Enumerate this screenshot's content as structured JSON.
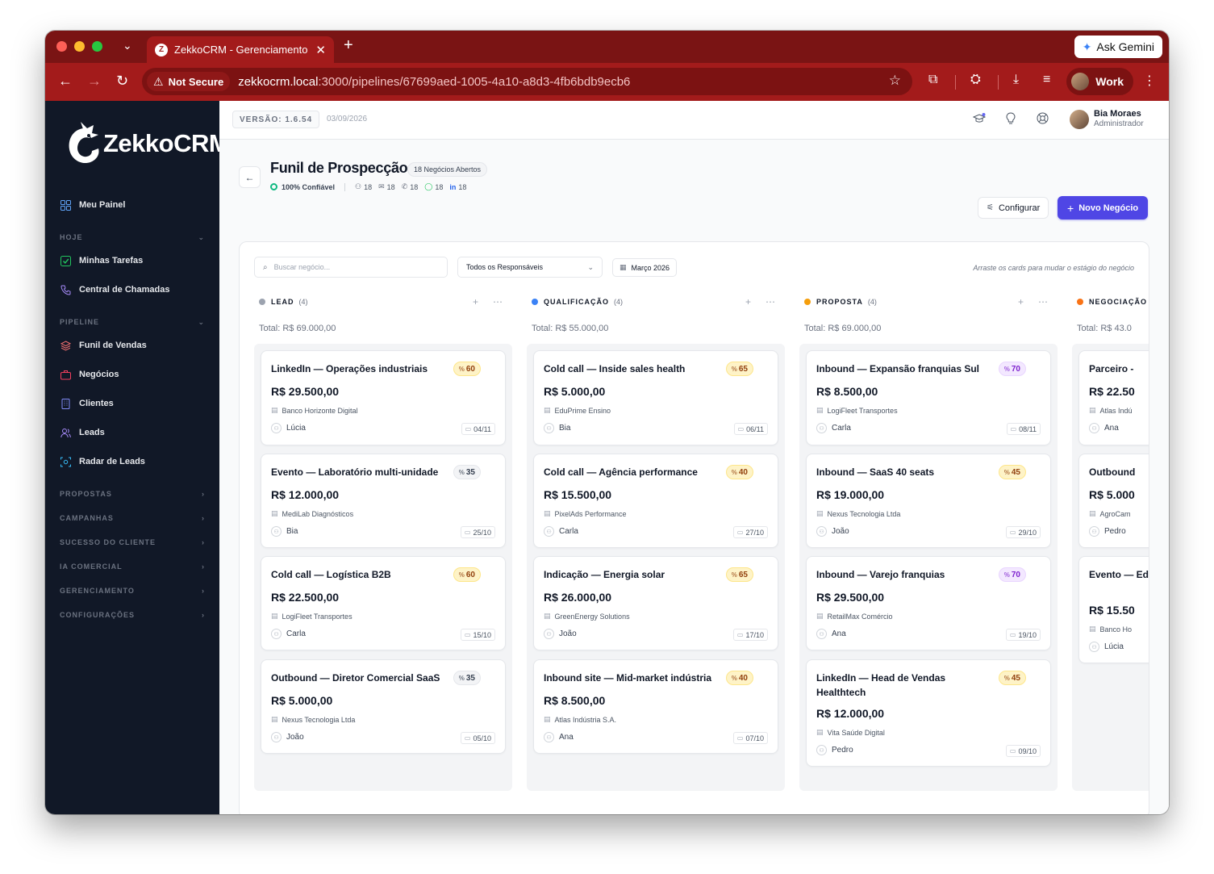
{
  "browser": {
    "tab_title": "ZekkoCRM - Gerenciamento I",
    "new_tab": "+",
    "ask_gemini": "Ask Gemini",
    "security_label": "Not Secure",
    "url_host": "zekkocrm.local",
    "url_path": ":3000/pipelines/67699aed-1005-4a10-a8d3-4fb6bdb9ecb6",
    "profile_label": "Work"
  },
  "sidebar": {
    "brand": "ZekkoCRM",
    "top_item": "Meu Painel",
    "sections": [
      {
        "label": "HOJE",
        "expanded": true,
        "items": [
          "Minhas Tarefas",
          "Central de Chamadas"
        ]
      },
      {
        "label": "PIPELINE",
        "expanded": true,
        "items": [
          "Funil de Vendas",
          "Negócios",
          "Clientes",
          "Leads",
          "Radar de Leads"
        ]
      },
      {
        "label": "PROPOSTAS",
        "expanded": false,
        "items": []
      },
      {
        "label": "CAMPANHAS",
        "expanded": false,
        "items": []
      },
      {
        "label": "SUCESSO DO CLIENTE",
        "expanded": false,
        "items": []
      },
      {
        "label": "IA COMERCIAL",
        "expanded": false,
        "items": []
      },
      {
        "label": "GERENCIAMENTO",
        "expanded": false,
        "items": []
      },
      {
        "label": "CONFIGURAÇÕES",
        "expanded": false,
        "items": []
      }
    ]
  },
  "topbar": {
    "version": "VERSÃO: 1.6.54",
    "date": "03/09/2026",
    "user_name": "Bia Moraes",
    "user_role": "Administrador"
  },
  "header": {
    "title": "Funil de Prospecção",
    "open_badge": "18 Negócios Abertos",
    "confidence": "100% Confiável",
    "stats": [
      "18",
      "18",
      "18",
      "18",
      "18"
    ],
    "configure_label": "Configurar",
    "new_deal_label": "Novo Negócio"
  },
  "filters": {
    "search_placeholder": "Buscar negócio...",
    "owner_select": "Todos os Responsáveis",
    "month": "Março 2026",
    "drag_hint": "Arraste os cards para mudar o estágio do negócio"
  },
  "colors": {
    "accent": "#4f46e5",
    "chrome": "#a31b1b",
    "sidebar": "#111827",
    "lead": "#9ca3af",
    "qualificacao": "#3b82f6",
    "proposta": "#f59e0b",
    "negociacao": "#f97316"
  },
  "columns": [
    {
      "name": "LEAD",
      "count": "(4)",
      "total": "Total: R$ 69.000,00",
      "dot": "#9ca3af",
      "cards": [
        {
          "title": "LinkedIn — Operações industriais",
          "score": "60",
          "tone": "yellow",
          "value": "R$ 29.500,00",
          "company": "Banco Horizonte Digital",
          "owner": "Lúcia",
          "date": "04/11"
        },
        {
          "title": "Evento — Laboratório multi-unidade",
          "score": "35",
          "tone": "gray",
          "value": "R$ 12.000,00",
          "company": "MediLab Diagnósticos",
          "owner": "Bia",
          "date": "25/10"
        },
        {
          "title": "Cold call — Logística B2B",
          "score": "60",
          "tone": "yellow",
          "value": "R$ 22.500,00",
          "company": "LogiFleet Transportes",
          "owner": "Carla",
          "date": "15/10"
        },
        {
          "title": "Outbound — Diretor Comercial SaaS",
          "score": "35",
          "tone": "gray",
          "value": "R$ 5.000,00",
          "company": "Nexus Tecnologia Ltda",
          "owner": "João",
          "date": "05/10"
        }
      ]
    },
    {
      "name": "QUALIFICAÇÃO",
      "count": "(4)",
      "total": "Total: R$ 55.000,00",
      "dot": "#3b82f6",
      "cards": [
        {
          "title": "Cold call — Inside sales health",
          "score": "65",
          "tone": "yellow",
          "value": "R$ 5.000,00",
          "company": "EduPrime Ensino",
          "owner": "Bia",
          "date": "06/11"
        },
        {
          "title": "Cold call — Agência performance",
          "score": "40",
          "tone": "yellow",
          "value": "R$ 15.500,00",
          "company": "PixelAds Performance",
          "owner": "Carla",
          "date": "27/10"
        },
        {
          "title": "Indicação — Energia solar",
          "score": "65",
          "tone": "yellow",
          "value": "R$ 26.000,00",
          "company": "GreenEnergy Solutions",
          "owner": "João",
          "date": "17/10"
        },
        {
          "title": "Inbound site — Mid-market indústria",
          "score": "40",
          "tone": "yellow",
          "value": "R$ 8.500,00",
          "company": "Atlas Indústria S.A.",
          "owner": "Ana",
          "date": "07/10"
        }
      ]
    },
    {
      "name": "PROPOSTA",
      "count": "(4)",
      "total": "Total: R$ 69.000,00",
      "dot": "#f59e0b",
      "cards": [
        {
          "title": "Inbound — Expansão franquias Sul",
          "score": "70",
          "tone": "purple",
          "value": "R$ 8.500,00",
          "company": "LogiFleet Transportes",
          "owner": "Carla",
          "date": "08/11"
        },
        {
          "title": "Inbound — SaaS 40 seats",
          "score": "45",
          "tone": "yellow",
          "value": "R$ 19.000,00",
          "company": "Nexus Tecnologia Ltda",
          "owner": "João",
          "date": "29/10"
        },
        {
          "title": "Inbound — Varejo franquias",
          "score": "70",
          "tone": "purple",
          "value": "R$ 29.500,00",
          "company": "RetailMax Comércio",
          "owner": "Ana",
          "date": "19/10"
        },
        {
          "title": "LinkedIn — Head de Vendas Healthtech",
          "score": "45",
          "tone": "yellow",
          "value": "R$ 12.000,00",
          "company": "Vita Saúde Digital",
          "owner": "Pedro",
          "date": "09/10"
        }
      ]
    },
    {
      "name": "NEGOCIAÇÃO",
      "count": "",
      "total": "Total: R$ 43.0",
      "dot": "#f97316",
      "cards": [
        {
          "title": "Parceiro -",
          "score": "",
          "tone": "",
          "value": "R$ 22.50",
          "company": "Atlas Indú",
          "owner": "Ana",
          "date": ""
        },
        {
          "title": "Outbound",
          "score": "",
          "tone": "",
          "value": "R$ 5.000",
          "company": "AgroCam",
          "owner": "Pedro",
          "date": ""
        },
        {
          "title": "Evento — Educação",
          "score": "",
          "tone": "",
          "value": "R$ 15.50",
          "company": "Banco Ho",
          "owner": "Lúcia",
          "date": ""
        }
      ]
    }
  ]
}
